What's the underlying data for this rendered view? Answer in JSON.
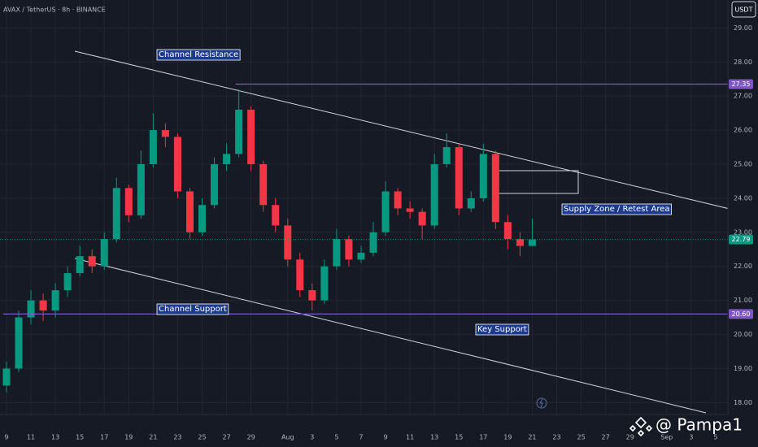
{
  "chart_data": {
    "type": "candlestick",
    "title": "AVAX / TetherUS · 8h · BINANCE",
    "currency": "USDT",
    "watermark": "@ Pampa1",
    "x": [
      0,
      1,
      2,
      3,
      4,
      5,
      6,
      7,
      8,
      9,
      10,
      11,
      12,
      13,
      14,
      15,
      16,
      17,
      18,
      19,
      20,
      21,
      22,
      23,
      24,
      25,
      26,
      27,
      28,
      29,
      30,
      31,
      32,
      33,
      34,
      35,
      36,
      37,
      38,
      39,
      40,
      41,
      42,
      43
    ],
    "open": [
      18.5,
      19.0,
      20.5,
      21.0,
      20.7,
      21.3,
      21.8,
      22.3,
      22.0,
      22.8,
      24.3,
      23.5,
      25.0,
      26.0,
      25.8,
      24.2,
      23.0,
      23.8,
      25.0,
      25.3,
      26.6,
      25.0,
      23.8,
      23.2,
      22.2,
      21.3,
      21.0,
      22.0,
      22.8,
      22.2,
      22.4,
      23.0,
      24.2,
      23.7,
      23.6,
      23.2,
      25.0,
      25.5,
      23.7,
      24.0,
      25.3,
      23.3,
      22.8,
      22.6
    ],
    "high": [
      19.2,
      20.7,
      21.3,
      21.2,
      21.5,
      22.0,
      22.6,
      22.5,
      23.0,
      24.6,
      24.4,
      25.4,
      26.5,
      26.2,
      25.9,
      24.3,
      24.0,
      25.2,
      25.6,
      27.2,
      26.7,
      25.1,
      24.0,
      23.4,
      22.4,
      21.5,
      22.2,
      23.1,
      22.9,
      22.6,
      23.3,
      24.5,
      24.3,
      23.9,
      23.7,
      25.3,
      25.9,
      25.6,
      24.2,
      25.6,
      25.4,
      23.5,
      23.0,
      23.4
    ],
    "low": [
      18.3,
      18.9,
      20.3,
      20.4,
      20.5,
      21.1,
      21.7,
      21.8,
      21.9,
      22.7,
      23.3,
      23.4,
      24.9,
      25.5,
      24.0,
      22.8,
      22.9,
      23.7,
      24.8,
      25.2,
      24.8,
      23.6,
      23.0,
      22.0,
      21.1,
      20.7,
      20.9,
      21.9,
      22.0,
      22.1,
      22.3,
      22.9,
      23.5,
      23.4,
      22.8,
      23.1,
      24.9,
      23.5,
      23.6,
      23.9,
      23.1,
      22.5,
      22.3,
      22.6
    ],
    "close": [
      19.0,
      20.5,
      21.0,
      20.7,
      21.3,
      21.8,
      22.3,
      22.0,
      22.8,
      24.3,
      23.5,
      25.0,
      26.0,
      25.8,
      24.2,
      23.0,
      23.8,
      25.0,
      25.3,
      26.6,
      25.0,
      23.8,
      23.2,
      22.2,
      21.3,
      21.0,
      22.0,
      22.8,
      22.2,
      22.4,
      23.0,
      24.2,
      23.7,
      23.6,
      23.2,
      25.0,
      25.5,
      23.7,
      24.0,
      25.3,
      23.3,
      22.8,
      22.6,
      22.79
    ],
    "up_color": "#089981",
    "down_color": "#f23645",
    "xlim": [
      -0.53,
      59.0
    ],
    "ylim": [
      17.65,
      29.82
    ],
    "xticks": [
      {
        "value": 0,
        "label": "9"
      },
      {
        "value": 2,
        "label": "11"
      },
      {
        "value": 4,
        "label": "13"
      },
      {
        "value": 6,
        "label": "15"
      },
      {
        "value": 8,
        "label": "17"
      },
      {
        "value": 10,
        "label": "19"
      },
      {
        "value": 12,
        "label": "21"
      },
      {
        "value": 14,
        "label": "23"
      },
      {
        "value": 16,
        "label": "25"
      },
      {
        "value": 18,
        "label": "27"
      },
      {
        "value": 20,
        "label": "29"
      },
      {
        "value": 23,
        "label": "Aug"
      },
      {
        "value": 25,
        "label": "3"
      },
      {
        "value": 27,
        "label": "5"
      },
      {
        "value": 29,
        "label": "7"
      },
      {
        "value": 31,
        "label": "9"
      },
      {
        "value": 33,
        "label": "11"
      },
      {
        "value": 35,
        "label": "13"
      },
      {
        "value": 37,
        "label": "15"
      },
      {
        "value": 39,
        "label": "17"
      },
      {
        "value": 41,
        "label": "19"
      },
      {
        "value": 43,
        "label": "21"
      },
      {
        "value": 45,
        "label": "23"
      },
      {
        "value": 47,
        "label": "25"
      },
      {
        "value": 49,
        "label": "27"
      },
      {
        "value": 51,
        "label": "29"
      },
      {
        "value": 54,
        "label": "Sep"
      },
      {
        "value": 56,
        "label": "3"
      },
      {
        "value": 58,
        "label": "5"
      }
    ],
    "yticks": [
      {
        "value": 18,
        "label": "18.00"
      },
      {
        "value": 19,
        "label": "19.00"
      },
      {
        "value": 20,
        "label": "20.00"
      },
      {
        "value": 21,
        "label": "21.00"
      },
      {
        "value": 22,
        "label": "22.00"
      },
      {
        "value": 23,
        "label": "23.00"
      },
      {
        "value": 24,
        "label": "24.00"
      },
      {
        "value": 25,
        "label": "25.00"
      },
      {
        "value": 26,
        "label": "26.00"
      },
      {
        "value": 27,
        "label": "27.00"
      },
      {
        "value": 28,
        "label": "28.00"
      },
      {
        "value": 29,
        "label": "29.00"
      }
    ],
    "grid": true,
    "price_lines": [
      {
        "value": 27.35,
        "color": "#7e57c2"
      },
      {
        "value": {
          "value": 20.6,
          "label": "20.60"
        },
        "color": "#7e57c2"
      }
    ],
    "last_price": {
      "value": 22.79,
      "label": "22.79",
      "color": "#089981"
    },
    "annotations": [
      "Channel Resistance",
      "Channel Support",
      "Supply Zone / Retest Area",
      "Key Support"
    ]
  }
}
